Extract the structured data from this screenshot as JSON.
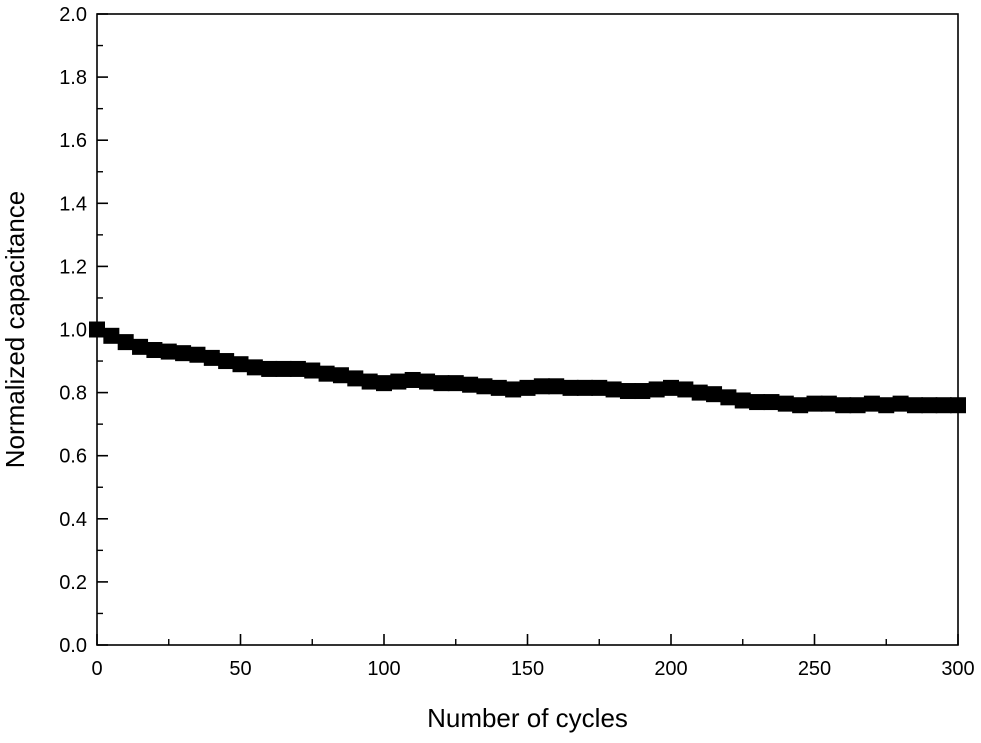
{
  "chart_data": {
    "type": "scatter",
    "title": "",
    "xlabel": "Number of cycles",
    "ylabel": "Normalized capacitance",
    "xlim": [
      0,
      300
    ],
    "ylim": [
      0.0,
      2.0
    ],
    "x_ticks": [
      0,
      50,
      100,
      150,
      200,
      250,
      300
    ],
    "x_tick_labels": [
      "0",
      "50",
      "100",
      "150",
      "200",
      "250",
      "300"
    ],
    "y_ticks": [
      0.0,
      0.2,
      0.4,
      0.6,
      0.8,
      1.0,
      1.2,
      1.4,
      1.6,
      1.8,
      2.0
    ],
    "y_tick_labels": [
      "0.0",
      "0.2",
      "0.4",
      "0.6",
      "0.8",
      "1.0",
      "1.2",
      "1.4",
      "1.6",
      "1.8",
      "2.0"
    ],
    "grid": false,
    "legend": "none",
    "marker_color": "#000000",
    "marker": "square",
    "series": [
      {
        "x": [
          0,
          5,
          10,
          15,
          20,
          25,
          30,
          35,
          40,
          45,
          50,
          55,
          60,
          65,
          70,
          75,
          80,
          85,
          90,
          95,
          100,
          105,
          110,
          115,
          120,
          125,
          130,
          135,
          140,
          145,
          150,
          155,
          160,
          165,
          170,
          175,
          180,
          185,
          190,
          195,
          200,
          205,
          210,
          215,
          220,
          225,
          230,
          235,
          240,
          245,
          250,
          255,
          260,
          265,
          270,
          275,
          280,
          285,
          290,
          295,
          300
        ],
        "y": [
          1.0,
          0.98,
          0.96,
          0.945,
          0.935,
          0.93,
          0.925,
          0.92,
          0.91,
          0.9,
          0.89,
          0.88,
          0.875,
          0.875,
          0.875,
          0.87,
          0.86,
          0.855,
          0.845,
          0.835,
          0.83,
          0.835,
          0.84,
          0.835,
          0.83,
          0.83,
          0.825,
          0.82,
          0.815,
          0.81,
          0.815,
          0.82,
          0.82,
          0.815,
          0.815,
          0.815,
          0.81,
          0.805,
          0.805,
          0.81,
          0.815,
          0.81,
          0.8,
          0.795,
          0.785,
          0.775,
          0.77,
          0.77,
          0.765,
          0.76,
          0.765,
          0.765,
          0.76,
          0.76,
          0.765,
          0.76,
          0.765,
          0.76,
          0.76,
          0.76,
          0.76
        ]
      }
    ]
  }
}
